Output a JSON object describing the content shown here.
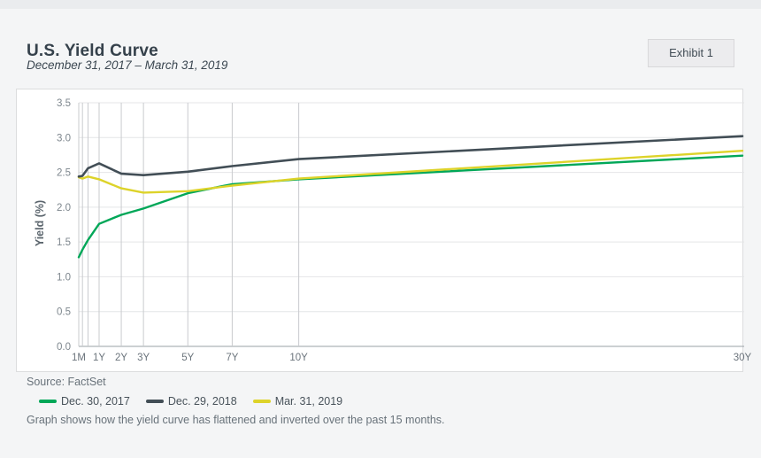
{
  "page": {
    "title": "U.S. Yield Curve",
    "subtitle": "December 31, 2017 – March 31, 2019",
    "exhibit_label": "Exhibit 1",
    "source": "Source: FactSet",
    "caption": "Graph shows how the yield curve has flattened and inverted over the past 15 months."
  },
  "chart_data": {
    "type": "line",
    "title": "U.S. Yield Curve",
    "ylabel": "Yield (%)",
    "ylim": [
      0.0,
      3.5
    ],
    "ytick_step": 0.5,
    "grid": true,
    "legend_position": "bottom",
    "x_axis_unit": "maturity in years (linear)",
    "x_years": [
      0.083,
      0.25,
      0.5,
      1,
      2,
      3,
      5,
      7,
      10,
      30
    ],
    "x_tick_labels": [
      {
        "years": 0.083,
        "label": "1M"
      },
      {
        "years": 1,
        "label": "1Y"
      },
      {
        "years": 2,
        "label": "2Y"
      },
      {
        "years": 3,
        "label": "3Y"
      },
      {
        "years": 5,
        "label": "5Y"
      },
      {
        "years": 7,
        "label": "7Y"
      },
      {
        "years": 10,
        "label": "10Y"
      },
      {
        "years": 30,
        "label": "30Y"
      }
    ],
    "series": [
      {
        "name": "Dec. 30, 2017",
        "color": "#00a758",
        "values": [
          1.28,
          1.39,
          1.53,
          1.76,
          1.89,
          1.98,
          2.2,
          2.33,
          2.4,
          2.74
        ]
      },
      {
        "name": "Dec. 29, 2018",
        "color": "#424e56",
        "values": [
          2.44,
          2.45,
          2.56,
          2.63,
          2.48,
          2.46,
          2.51,
          2.59,
          2.69,
          3.02
        ]
      },
      {
        "name": "Mar. 31, 2019",
        "color": "#ddd32a",
        "values": [
          2.43,
          2.41,
          2.44,
          2.4,
          2.27,
          2.21,
          2.23,
          2.31,
          2.41,
          2.81
        ]
      }
    ],
    "style": {
      "axis_color": "#9aa0a6",
      "h_grid_color": "#e4e5e7",
      "v_grid_color": "#c9cbce",
      "tick_label_color": "#7d868d"
    }
  }
}
